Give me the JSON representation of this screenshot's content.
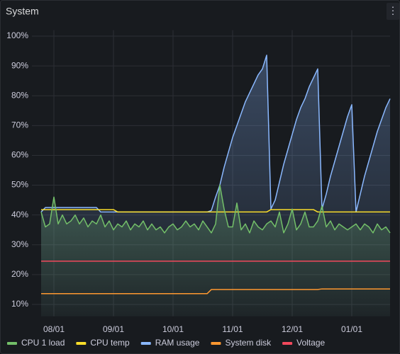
{
  "chart_data": {
    "type": "line",
    "title": "System",
    "categories": [
      null,
      null,
      null,
      "08/01",
      null,
      null,
      null,
      null,
      null,
      null,
      null,
      null,
      null,
      null,
      null,
      null,
      null,
      "09/01",
      null,
      null,
      null,
      null,
      null,
      null,
      null,
      null,
      null,
      null,
      null,
      null,
      null,
      "10/01",
      null,
      null,
      null,
      null,
      null,
      null,
      null,
      null,
      null,
      null,
      null,
      null,
      null,
      "11/01",
      null,
      null,
      null,
      null,
      null,
      null,
      null,
      null,
      null,
      null,
      null,
      null,
      null,
      "12/01",
      null,
      null,
      null,
      null,
      null,
      null,
      null,
      null,
      null,
      null,
      null,
      null,
      null,
      "01/01",
      null,
      null,
      null,
      null,
      null,
      null,
      null,
      null,
      null
    ],
    "series": [
      {
        "name": "CPU 1 load",
        "color": "#73bf69",
        "fill": true,
        "values": [
          41,
          36,
          37,
          46,
          37,
          40,
          37,
          38,
          40,
          37,
          39,
          36,
          38,
          37,
          40,
          36,
          38,
          35,
          37,
          36,
          38,
          35,
          37,
          36,
          38,
          35,
          37,
          35,
          36,
          34,
          36,
          37,
          35,
          36,
          38,
          36,
          37,
          35,
          38,
          36,
          34,
          37,
          50,
          42,
          36,
          36,
          44,
          35,
          37,
          34,
          38,
          36,
          35,
          37,
          38,
          36,
          41,
          34,
          37,
          42,
          35,
          37,
          41,
          36,
          36,
          38,
          43,
          36,
          38,
          35,
          37,
          36,
          35,
          36,
          37,
          35,
          37,
          36,
          34,
          37,
          35,
          36,
          34
        ]
      },
      {
        "name": "CPU temp",
        "color": "#fade2a",
        "fill": false,
        "values": [
          41.8,
          41.8,
          41.8,
          41.8,
          41.8,
          41.8,
          41.8,
          41.8,
          41.8,
          41.8,
          41.8,
          41.8,
          41.8,
          41.8,
          41.8,
          41.8,
          41.8,
          41.8,
          41,
          41,
          41,
          41,
          41,
          41,
          41,
          41,
          41,
          41,
          41,
          41,
          41,
          41,
          41,
          41,
          41,
          41,
          41,
          41,
          41,
          41,
          41,
          41,
          41,
          41,
          41,
          41,
          41,
          41,
          41,
          41,
          41,
          41,
          41,
          41,
          41.8,
          41.8,
          41.8,
          41.8,
          41.8,
          41.8,
          41.8,
          41.8,
          41.8,
          41.8,
          41.8,
          41,
          41,
          41,
          41,
          41,
          41,
          41,
          41,
          41,
          41,
          41,
          41,
          41,
          41,
          41,
          41,
          41,
          41
        ]
      },
      {
        "name": "RAM usage",
        "color": "#8ab8ff",
        "fill": true,
        "values": [
          41,
          42.5,
          42.5,
          42.5,
          42.5,
          42.5,
          42.5,
          42.5,
          42.5,
          42.5,
          42.5,
          42.5,
          42.5,
          42.5,
          41,
          41,
          41,
          41,
          41,
          41,
          41,
          41,
          41,
          41,
          41,
          41,
          41,
          41,
          41,
          41,
          41,
          41,
          41,
          41,
          41,
          41,
          41,
          41,
          41,
          41,
          41.5,
          46,
          50,
          56,
          61,
          66,
          70,
          74,
          78,
          81,
          84,
          87,
          89,
          93.6,
          42,
          45,
          51,
          57,
          62,
          67,
          72,
          76,
          79,
          83,
          86,
          89,
          42,
          47,
          53,
          58,
          63,
          68,
          73,
          77,
          41,
          47,
          53,
          58,
          63,
          68,
          72,
          76,
          79
        ]
      },
      {
        "name": "System disk",
        "color": "#ff9830",
        "fill": false,
        "values": [
          13.6,
          13.6,
          13.6,
          13.6,
          13.6,
          13.6,
          13.6,
          13.6,
          13.6,
          13.6,
          13.6,
          13.6,
          13.6,
          13.6,
          13.6,
          13.6,
          13.6,
          13.6,
          13.6,
          13.6,
          13.6,
          13.6,
          13.6,
          13.6,
          13.6,
          13.6,
          13.6,
          13.6,
          13.6,
          13.6,
          13.6,
          13.6,
          13.6,
          13.6,
          13.6,
          13.6,
          13.6,
          13.6,
          13.6,
          13.6,
          15.0,
          15.0,
          15.0,
          15.0,
          15.0,
          15.0,
          15.0,
          15.0,
          15.0,
          15.0,
          15.0,
          15.0,
          15.0,
          15.0,
          15.0,
          15.0,
          15.0,
          15.0,
          15.0,
          15.0,
          15.0,
          15.0,
          15.0,
          15.0,
          15.0,
          15.0,
          15.2,
          15.2,
          15.2,
          15.2,
          15.2,
          15.2,
          15.2,
          15.2,
          15.2,
          15.2,
          15.2,
          15.2,
          15.2,
          15.2,
          15.2,
          15.2,
          15.2
        ]
      },
      {
        "name": "Voltage",
        "color": "#f2495c",
        "fill": false,
        "values": [
          24.5,
          24.5,
          24.5,
          24.5,
          24.5,
          24.5,
          24.5,
          24.5,
          24.5,
          24.5,
          24.5,
          24.5,
          24.5,
          24.5,
          24.5,
          24.5,
          24.5,
          24.5,
          24.5,
          24.5,
          24.5,
          24.5,
          24.5,
          24.5,
          24.5,
          24.5,
          24.5,
          24.5,
          24.5,
          24.5,
          24.5,
          24.5,
          24.5,
          24.5,
          24.5,
          24.5,
          24.5,
          24.5,
          24.5,
          24.5,
          24.5,
          24.5,
          24.5,
          24.5,
          24.5,
          24.5,
          24.5,
          24.5,
          24.5,
          24.5,
          24.5,
          24.5,
          24.5,
          24.5,
          24.5,
          24.5,
          24.5,
          24.5,
          24.5,
          24.5,
          24.5,
          24.5,
          24.5,
          24.5,
          24.5,
          24.5,
          24.5,
          24.5,
          24.5,
          24.5,
          24.5,
          24.5,
          24.5,
          24.5,
          24.5,
          24.5,
          24.5,
          24.5,
          24.5,
          24.5,
          24.5,
          24.5,
          24.5
        ]
      }
    ],
    "ylim": [
      6,
      102
    ],
    "yticks": [
      {
        "value": 10,
        "label": "10%"
      },
      {
        "value": 20,
        "label": "20%"
      },
      {
        "value": 30,
        "label": "30%"
      },
      {
        "value": 40,
        "label": "40%"
      },
      {
        "value": 50,
        "label": "50%"
      },
      {
        "value": 60,
        "label": "60%"
      },
      {
        "value": 70,
        "label": "70%"
      },
      {
        "value": 80,
        "label": "80%"
      },
      {
        "value": 90,
        "label": "90%"
      },
      {
        "value": 100,
        "label": "100%"
      }
    ],
    "grid": true,
    "legend": "bottom"
  }
}
